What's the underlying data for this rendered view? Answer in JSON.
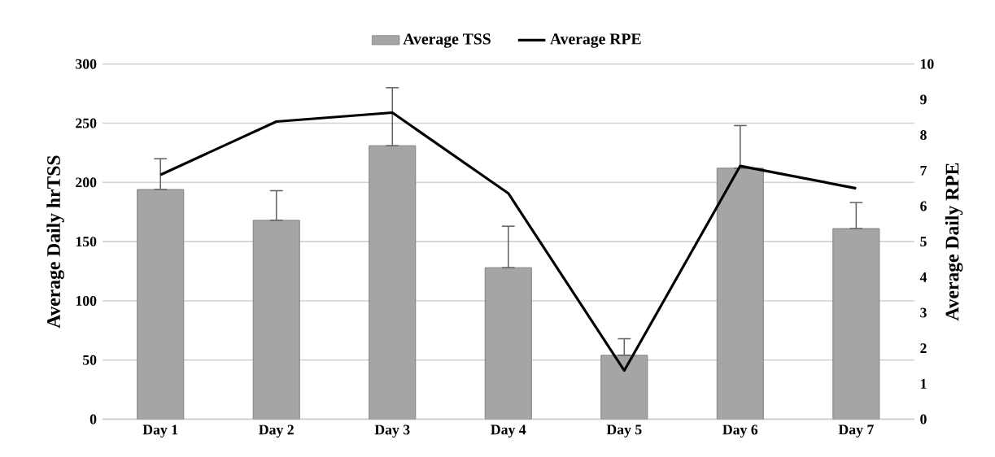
{
  "chart_data": {
    "type": "bar",
    "categories": [
      "Day 1",
      "Day 2",
      "Day 3",
      "Day 4",
      "Day 5",
      "Day 6",
      "Day 7"
    ],
    "series": [
      {
        "name": "Average TSS",
        "color": "#a5a5a5",
        "values": [
          194,
          168,
          231,
          128,
          54,
          212,
          161
        ],
        "errors": [
          [
            194,
            220
          ],
          [
            168,
            193
          ],
          [
            231,
            280
          ],
          [
            128,
            163
          ],
          [
            54,
            68
          ],
          [
            212,
            248
          ],
          [
            161,
            183
          ]
        ]
      },
      {
        "name": "Average RPE",
        "type": "line",
        "axis": "y2",
        "color": "#000000",
        "values": [
          6.88,
          8.38,
          8.63,
          6.36,
          1.37,
          7.13,
          6.5
        ]
      }
    ],
    "ylabel": "Average Daily hrTSS",
    "y2label": "Average Daily RPE",
    "ylim": [
      0,
      300
    ],
    "yticks": [
      0,
      50,
      100,
      150,
      200,
      250,
      300
    ],
    "y2lim": [
      0,
      10
    ],
    "y2ticks": [
      0,
      1,
      2,
      3,
      4,
      5,
      6,
      7,
      8,
      9,
      10
    ],
    "grid": "y",
    "legend": "top",
    "marker": "none",
    "line_style": "solid"
  }
}
